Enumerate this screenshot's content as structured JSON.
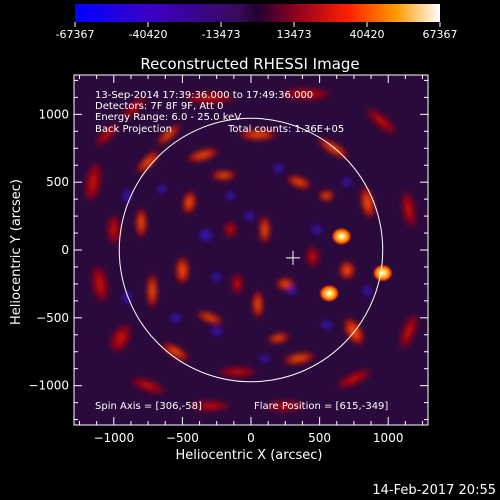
{
  "colorbar": {
    "ticks": [
      "-67367",
      "-40420",
      "-13473",
      "13473",
      "40420",
      "67367"
    ],
    "values": [
      -67367,
      -40420,
      -13473,
      13473,
      40420,
      67367
    ],
    "min": -67367,
    "max": 67367
  },
  "chart_data": {
    "type": "heatmap",
    "title": "Reconstructed RHESSI Image",
    "xlabel": "Heliocentric X (arcsec)",
    "ylabel": "Heliocentric Y (arcsec)",
    "xlim": [
      -1290,
      1290
    ],
    "ylim": [
      -1290,
      1290
    ],
    "xticks": [
      -1000,
      -500,
      0,
      500,
      1000
    ],
    "xtick_labels": [
      "−1000",
      "−500",
      "0",
      "500",
      "1000"
    ],
    "yticks": [
      -1000,
      -500,
      0,
      500,
      1000
    ],
    "ytick_labels": [
      "−1000",
      "−500",
      "0",
      "500",
      "1000"
    ],
    "solar_disk_radius": 960,
    "spin_axis": [
      306,
      -58
    ],
    "flare_position": [
      615,
      -349
    ],
    "colormap_range": [
      -67367,
      67367
    ],
    "info_lines": [
      "13-Sep-2014 17:39:36.000 to 17:49:36.000",
      "Detectors: 7F 8F 9F, Att 0",
      "Energy Range: 6.0 - 25.0 keV"
    ],
    "method": "Back Projection",
    "total_counts": "Total counts: 1.36E+05",
    "spin_axis_text": "Spin Axis = [306,-58]",
    "flare_text": "Flare Position = [615,-349]",
    "sources": [
      {
        "x": 960,
        "y": -170,
        "kind": "bright"
      },
      {
        "x": 570,
        "y": -320,
        "kind": "bright"
      },
      {
        "x": 660,
        "y": 100,
        "kind": "bright"
      }
    ]
  },
  "footer_date": "14-Feb-2017 20:55"
}
